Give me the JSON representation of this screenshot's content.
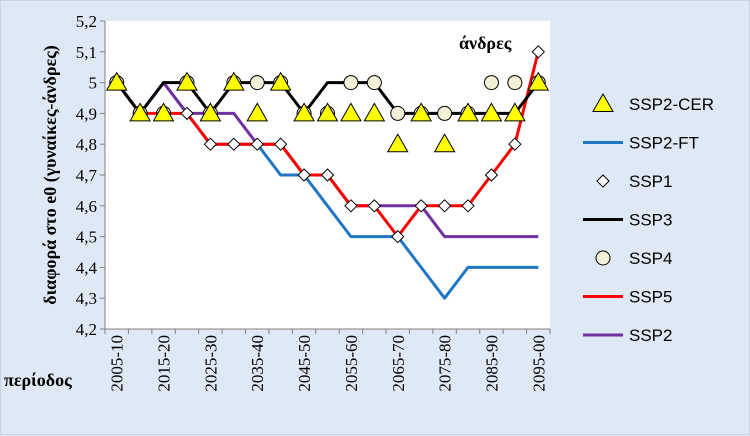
{
  "chart_data": {
    "type": "line",
    "title": "",
    "ylabel": "διαφορά στο e0 (γυναίκες-άνδρες)",
    "xlabel": "περίοδος",
    "annotation": "άνδρες",
    "ylim": [
      4.2,
      5.2
    ],
    "y_ticks": [
      "4,2",
      "4,3",
      "4,4",
      "4,5",
      "4,6",
      "4,7",
      "4,8",
      "4,9",
      "5",
      "5,1",
      "5,2"
    ],
    "x": [
      "2005-10",
      "2010-15",
      "2015-20",
      "2020-25",
      "2025-30",
      "2030-35",
      "2035-40",
      "2040-45",
      "2045-50",
      "2050-55",
      "2055-60",
      "2060-65",
      "2065-70",
      "2070-75",
      "2075-80",
      "2080-85",
      "2085-90",
      "2090-95",
      "2095-00"
    ],
    "x_tick_labels": [
      "2005-10",
      "2015-20",
      "2025-30",
      "2035-40",
      "2045-50",
      "2055-60",
      "2065-70",
      "2075-80",
      "2085-90",
      "2095-00"
    ],
    "series": [
      {
        "name": "SSP2-CER",
        "style": "markers",
        "marker": "triangle",
        "color": "#ffff00",
        "values": [
          5.0,
          4.9,
          4.9,
          5.0,
          4.9,
          5.0,
          4.9,
          5.0,
          4.9,
          4.9,
          4.9,
          4.9,
          4.8,
          4.9,
          4.8,
          4.9,
          4.9,
          4.9,
          5.0
        ]
      },
      {
        "name": "SSP2-FT",
        "style": "line",
        "color": "#1f77c4",
        "values": [
          5.0,
          4.9,
          5.0,
          4.9,
          4.8,
          4.8,
          4.8,
          4.7,
          4.7,
          4.6,
          4.5,
          4.5,
          4.5,
          4.4,
          4.3,
          4.4,
          4.4,
          4.4,
          4.4
        ]
      },
      {
        "name": "SSP1",
        "style": "markers",
        "marker": "diamond",
        "color": "#ffffff",
        "values": [
          5.0,
          4.9,
          4.9,
          4.9,
          4.8,
          4.8,
          4.8,
          4.8,
          4.7,
          4.7,
          4.6,
          4.6,
          4.5,
          4.6,
          4.6,
          4.6,
          4.7,
          4.8,
          5.1
        ]
      },
      {
        "name": "SSP3",
        "style": "line",
        "color": "#000000",
        "values": [
          5.0,
          4.9,
          5.0,
          5.0,
          4.9,
          5.0,
          5.0,
          5.0,
          4.9,
          5.0,
          5.0,
          5.0,
          4.9,
          4.9,
          4.9,
          4.9,
          4.9,
          4.9,
          5.0
        ]
      },
      {
        "name": "SSP4",
        "style": "markers",
        "marker": "circle",
        "color": "#f2f0d6",
        "values": [
          5.0,
          4.9,
          4.9,
          5.0,
          4.9,
          5.0,
          5.0,
          5.0,
          4.9,
          4.9,
          5.0,
          5.0,
          4.9,
          4.9,
          4.9,
          4.9,
          5.0,
          5.0,
          5.0
        ]
      },
      {
        "name": "SSP5",
        "style": "line",
        "color": "#ff0000",
        "values": [
          5.0,
          4.9,
          4.9,
          4.9,
          4.8,
          4.8,
          4.8,
          4.8,
          4.7,
          4.7,
          4.6,
          4.6,
          4.5,
          4.6,
          4.6,
          4.6,
          4.7,
          4.8,
          5.1
        ]
      },
      {
        "name": "SSP2",
        "style": "line",
        "color": "#7030a0",
        "values": [
          5.0,
          4.9,
          5.0,
          4.9,
          4.9,
          4.9,
          4.8,
          4.8,
          4.7,
          4.7,
          4.6,
          4.6,
          4.6,
          4.6,
          4.5,
          4.5,
          4.5,
          4.5,
          4.5
        ]
      }
    ],
    "legend": [
      "SSP2-CER",
      "SSP2-FT",
      "SSP1",
      "SSP3",
      "SSP4",
      "SSP5",
      "SSP2"
    ],
    "legend_position": "right",
    "grid": false
  }
}
